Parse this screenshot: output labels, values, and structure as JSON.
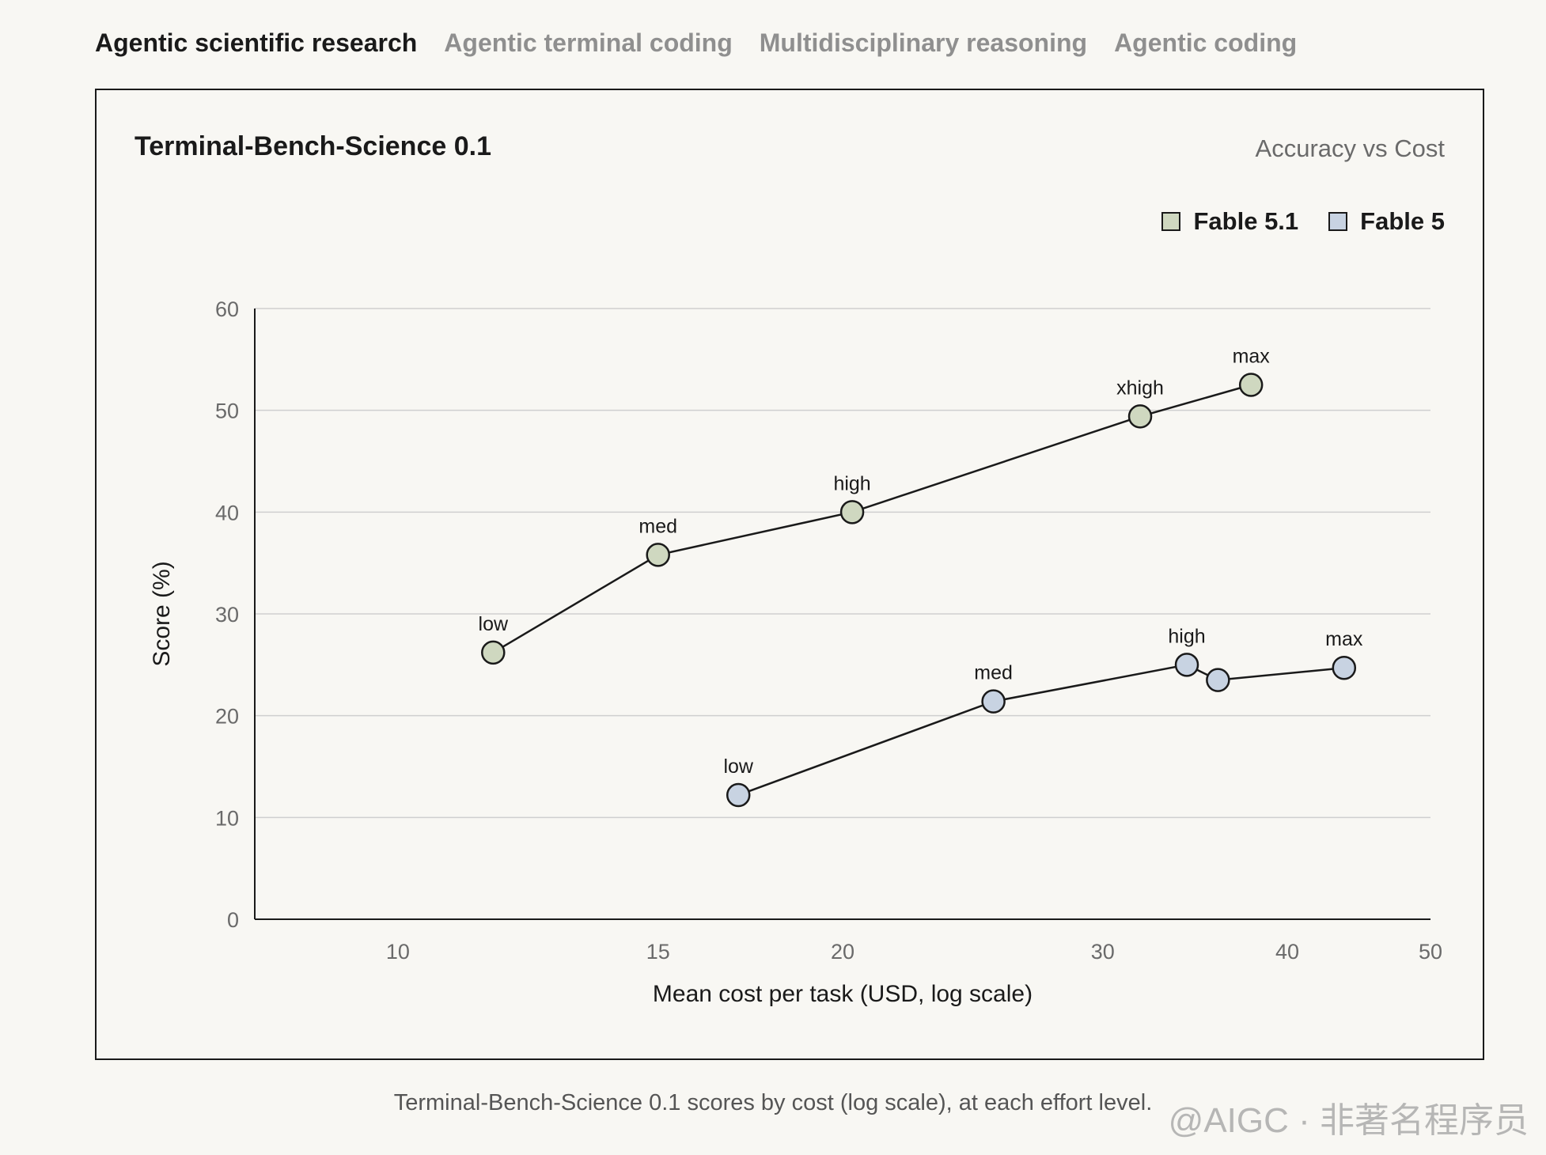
{
  "tabs": [
    {
      "label": "Agentic scientific research",
      "active": true
    },
    {
      "label": "Agentic terminal coding",
      "active": false
    },
    {
      "label": "Multidisciplinary reasoning",
      "active": false
    },
    {
      "label": "Agentic coding",
      "active": false
    }
  ],
  "caption": "Terminal-Bench-Science 0.1 scores by cost (log scale), at each effort level.",
  "watermark": "@AIGC · 非著名程序员",
  "chart_data": {
    "type": "line",
    "title": "Terminal-Bench-Science 0.1",
    "subtitle": "Accuracy vs Cost",
    "xlabel": "Mean cost per task (USD, log scale)",
    "ylabel": "Score (%)",
    "x_scale": "log",
    "xlim": [
      8,
      50
    ],
    "ylim": [
      0,
      60
    ],
    "x_ticks": [
      10,
      15,
      20,
      30,
      40,
      50
    ],
    "y_ticks": [
      0,
      10,
      20,
      30,
      40,
      50,
      60
    ],
    "grid": "horizontal",
    "legend_position": "top-right",
    "series": [
      {
        "name": "Fable 5.1",
        "color": "#cfd8c0",
        "points": [
          {
            "x": 11.6,
            "y": 26.2,
            "label": "low"
          },
          {
            "x": 15.0,
            "y": 35.8,
            "label": "med"
          },
          {
            "x": 20.3,
            "y": 40.0,
            "label": "high"
          },
          {
            "x": 31.8,
            "y": 49.4,
            "label": "xhigh"
          },
          {
            "x": 37.8,
            "y": 52.5,
            "label": "max"
          }
        ]
      },
      {
        "name": "Fable 5",
        "color": "#c8d3e2",
        "points": [
          {
            "x": 17.0,
            "y": 12.2,
            "label": "low"
          },
          {
            "x": 25.3,
            "y": 21.4,
            "label": "med"
          },
          {
            "x": 34.2,
            "y": 25.0,
            "label": "high"
          },
          {
            "x": 35.9,
            "y": 23.5,
            "label": ""
          },
          {
            "x": 43.7,
            "y": 24.7,
            "label": "max"
          }
        ]
      }
    ]
  }
}
